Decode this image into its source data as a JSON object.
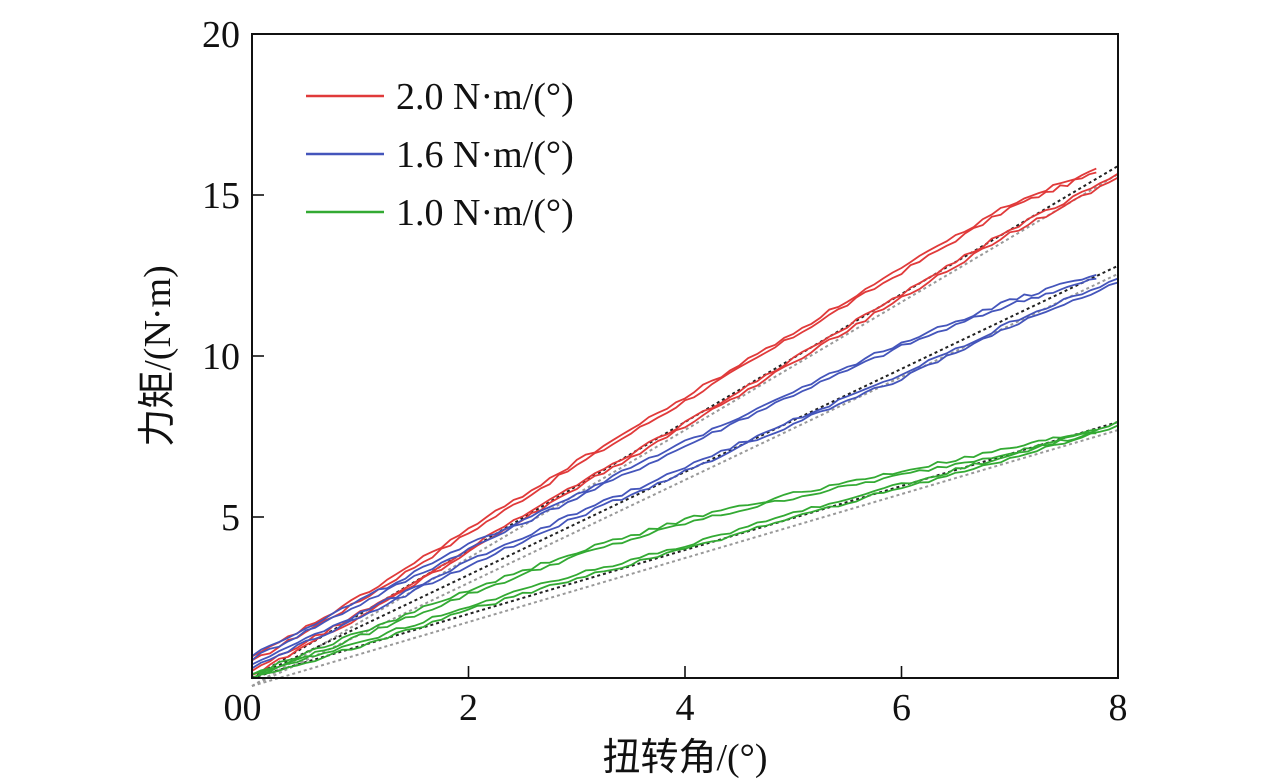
{
  "chart_data": {
    "type": "line",
    "xlabel": "扭转角/(°)",
    "ylabel": "力矩/(N·m)",
    "xlim": [
      0,
      8
    ],
    "ylim": [
      0,
      20
    ],
    "xticks": [
      0,
      2,
      4,
      6,
      8
    ],
    "yticks": [
      5,
      10,
      15,
      20
    ],
    "y_origin_label": "0",
    "grid": false,
    "legend_position": "top-left",
    "series": [
      {
        "name": "2.0 N·m/(°)",
        "color": "#e03a3a",
        "loading": [
          [
            0,
            0.5
          ],
          [
            1,
            2.4
          ],
          [
            2,
            4.5
          ],
          [
            3,
            6.6
          ],
          [
            4,
            8.6
          ],
          [
            5,
            10.6
          ],
          [
            6,
            12.6
          ],
          [
            7,
            14.6
          ],
          [
            7.8,
            15.7
          ]
        ],
        "unloading": [
          [
            8,
            15.5
          ],
          [
            7,
            13.8
          ],
          [
            6,
            11.8
          ],
          [
            5,
            9.8
          ],
          [
            4,
            7.8
          ],
          [
            3,
            5.9
          ],
          [
            2,
            3.9
          ],
          [
            1,
            1.9
          ],
          [
            0,
            0.1
          ]
        ],
        "fit": [
          [
            0,
            0
          ],
          [
            8,
            15.9
          ]
        ]
      },
      {
        "name": "1.6 N·m/(°)",
        "color": "#4455bb",
        "loading": [
          [
            0,
            0.6
          ],
          [
            1,
            2.3
          ],
          [
            2,
            4.0
          ],
          [
            3,
            5.6
          ],
          [
            4,
            7.2
          ],
          [
            5,
            8.8
          ],
          [
            6,
            10.3
          ],
          [
            7,
            11.6
          ],
          [
            7.8,
            12.4
          ]
        ],
        "unloading": [
          [
            8,
            12.3
          ],
          [
            7,
            10.9
          ],
          [
            6,
            9.3
          ],
          [
            5,
            7.9
          ],
          [
            4,
            6.4
          ],
          [
            3,
            5.0
          ],
          [
            2,
            3.5
          ],
          [
            1,
            1.9
          ],
          [
            0,
            0.3
          ]
        ],
        "fit": [
          [
            0,
            0
          ],
          [
            8,
            12.8
          ]
        ]
      },
      {
        "name": "1.0 N·m/(°)",
        "color": "#33aa33",
        "loading": [
          [
            0,
            0
          ],
          [
            1,
            1.3
          ],
          [
            2,
            2.6
          ],
          [
            3,
            3.8
          ],
          [
            4,
            4.8
          ],
          [
            5,
            5.6
          ],
          [
            6,
            6.3
          ],
          [
            7,
            7.0
          ],
          [
            7.8,
            7.6
          ]
        ],
        "unloading": [
          [
            8,
            7.8
          ],
          [
            7,
            6.8
          ],
          [
            6,
            5.9
          ],
          [
            5,
            5.0
          ],
          [
            4,
            4.0
          ],
          [
            3,
            3.1
          ],
          [
            2,
            2.1
          ],
          [
            1,
            1.0
          ],
          [
            0,
            0
          ]
        ],
        "fit": [
          [
            0,
            0
          ],
          [
            8,
            7.95
          ]
        ]
      }
    ]
  }
}
